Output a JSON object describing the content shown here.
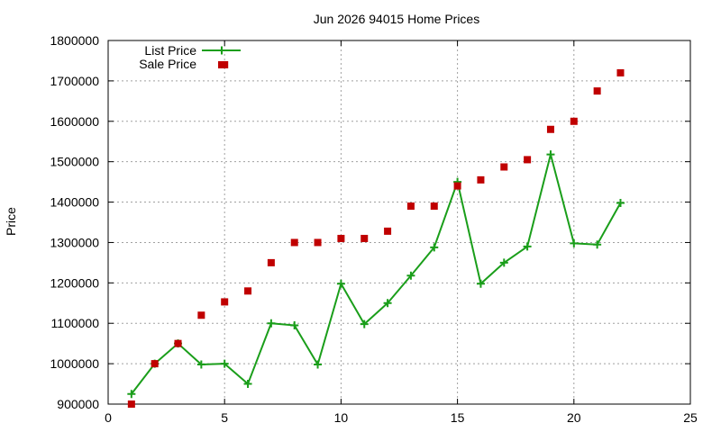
{
  "chart_data": {
    "type": "line",
    "title": "Jun 2026 94015 Home Prices",
    "xlabel": "",
    "ylabel": "Price",
    "xlim": [
      0,
      25
    ],
    "ylim": [
      900000,
      1800000
    ],
    "x_ticks": [
      0,
      5,
      10,
      15,
      20,
      25
    ],
    "y_ticks": [
      900000,
      1000000,
      1100000,
      1200000,
      1300000,
      1400000,
      1500000,
      1600000,
      1700000,
      1800000
    ],
    "grid": true,
    "legend_position": "top-left",
    "series": [
      {
        "name": "List Price",
        "style": "line-with-plus-markers",
        "color": "#1a9e1a",
        "x": [
          1,
          2,
          3,
          4,
          5,
          6,
          7,
          8,
          9,
          10,
          11,
          12,
          13,
          14,
          15,
          16,
          17,
          18,
          19,
          20,
          21,
          22
        ],
        "y": [
          925000,
          1000000,
          1050000,
          998000,
          1000000,
          950000,
          1100000,
          1095000,
          998000,
          1198000,
          1098000,
          1150000,
          1218000,
          1288000,
          1450000,
          1198000,
          1250000,
          1290000,
          1518000,
          1298000,
          1295000,
          1398000
        ]
      },
      {
        "name": "Sale Price",
        "style": "square-markers",
        "color": "#c00000",
        "x": [
          1,
          2,
          3,
          4,
          5,
          5,
          6,
          7,
          8,
          9,
          10,
          11,
          12,
          13,
          14,
          15,
          16,
          17,
          18,
          19,
          20,
          21,
          22
        ],
        "y": [
          900000,
          1000000,
          1050000,
          1120000,
          1153000,
          1740000,
          1180000,
          1250000,
          1300000,
          1300000,
          1310000,
          1310000,
          1328000,
          1390000,
          1390000,
          1440000,
          1455000,
          1487000,
          1505000,
          1580000,
          1600000,
          1675000,
          1720000
        ]
      }
    ]
  }
}
